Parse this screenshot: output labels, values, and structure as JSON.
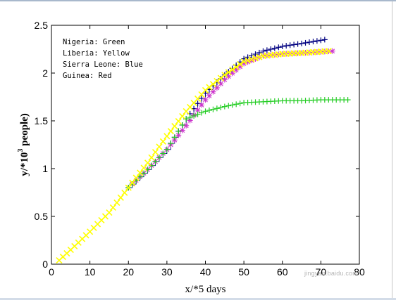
{
  "figure": {
    "watermark": "jingyan.baidu.com"
  },
  "colors": {
    "green": "#22cc22",
    "yellow": "#ffff00",
    "blue": "#000080",
    "red": "#cc33cc"
  },
  "chart_data": {
    "type": "scatter",
    "title": "",
    "xlabel": "x/*5 days",
    "ylabel_base": "y/*10",
    "ylabel_exponent": "3",
    "ylabel_suffix": " people)",
    "xlim": [
      0,
      80
    ],
    "ylim": [
      0,
      2.5
    ],
    "xticks": [
      0,
      10,
      20,
      30,
      40,
      50,
      60,
      70,
      80
    ],
    "yticks": [
      0,
      0.5,
      1,
      1.5,
      2,
      2.5
    ],
    "xtick_labels": [
      "0",
      "10",
      "20",
      "30",
      "40",
      "50",
      "60",
      "70",
      "80"
    ],
    "ytick_labels": [
      "0",
      "0.5",
      "1",
      "1.5",
      "2",
      "2.5"
    ],
    "grid": false,
    "legend_position": "top-left",
    "legend_lines": [
      "Nigeria: Green",
      "Liberia: Yellow",
      "Sierra Leone: Blue",
      "Guinea: Red"
    ],
    "series": [
      {
        "name": "Sierra Leone: Blue",
        "color_key": "blue",
        "marker": "plus",
        "knots": [
          [
            20,
            0.8
          ],
          [
            25,
            0.99
          ],
          [
            30,
            1.2
          ],
          [
            35,
            1.52
          ],
          [
            40,
            1.79
          ],
          [
            45,
            1.98
          ],
          [
            50,
            2.15
          ],
          [
            55,
            2.23
          ],
          [
            60,
            2.28
          ],
          [
            65,
            2.31
          ],
          [
            71,
            2.35
          ]
        ]
      },
      {
        "name": "Guinea: Red",
        "color_key": "red",
        "marker": "star",
        "knots": [
          [
            20,
            0.8
          ],
          [
            25,
            0.99
          ],
          [
            30,
            1.2
          ],
          [
            35,
            1.45
          ],
          [
            40,
            1.72
          ],
          [
            45,
            1.93
          ],
          [
            50,
            2.1
          ],
          [
            55,
            2.18
          ],
          [
            60,
            2.2
          ],
          [
            65,
            2.21
          ],
          [
            73,
            2.23
          ]
        ]
      },
      {
        "name": "Nigeria: Green",
        "color_key": "green",
        "marker": "plus",
        "knots": [
          [
            20,
            0.8
          ],
          [
            25,
            0.99
          ],
          [
            30,
            1.2
          ],
          [
            35,
            1.52
          ],
          [
            40,
            1.6
          ],
          [
            45,
            1.65
          ],
          [
            50,
            1.69
          ],
          [
            55,
            1.7
          ],
          [
            60,
            1.71
          ],
          [
            65,
            1.71
          ],
          [
            70,
            1.72
          ],
          [
            77,
            1.72
          ]
        ]
      },
      {
        "name": "Liberia: Yellow",
        "color_key": "yellow",
        "marker": "x",
        "knots": [
          [
            2,
            0.04
          ],
          [
            5,
            0.15
          ],
          [
            10,
            0.34
          ],
          [
            15,
            0.54
          ],
          [
            20,
            0.8
          ],
          [
            25,
            1.06
          ],
          [
            30,
            1.34
          ],
          [
            35,
            1.6
          ],
          [
            40,
            1.82
          ],
          [
            45,
            1.98
          ],
          [
            50,
            2.12
          ],
          [
            55,
            2.18
          ],
          [
            60,
            2.2
          ],
          [
            65,
            2.21
          ],
          [
            72,
            2.23
          ]
        ]
      }
    ]
  }
}
